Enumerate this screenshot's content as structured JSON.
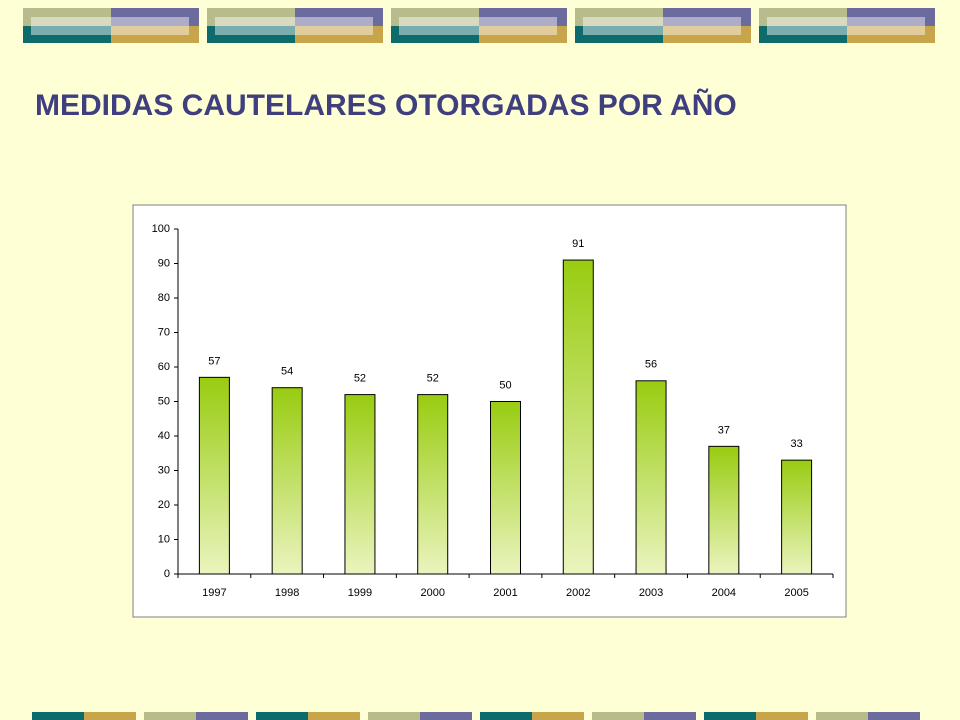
{
  "chart_data": {
    "type": "bar",
    "title": "MEDIDAS CAUTELARES OTORGADAS POR AÑO",
    "categories": [
      "1997",
      "1998",
      "1999",
      "2000",
      "2001",
      "2002",
      "2003",
      "2004",
      "2005"
    ],
    "values": [
      57,
      54,
      52,
      52,
      50,
      91,
      56,
      37,
      33
    ],
    "color": "#99CC11",
    "ylim": [
      0,
      100
    ],
    "yticks": [
      0,
      10,
      20,
      30,
      40,
      50,
      60,
      70,
      80,
      90,
      100
    ],
    "grid": false,
    "data_labels": true
  }
}
